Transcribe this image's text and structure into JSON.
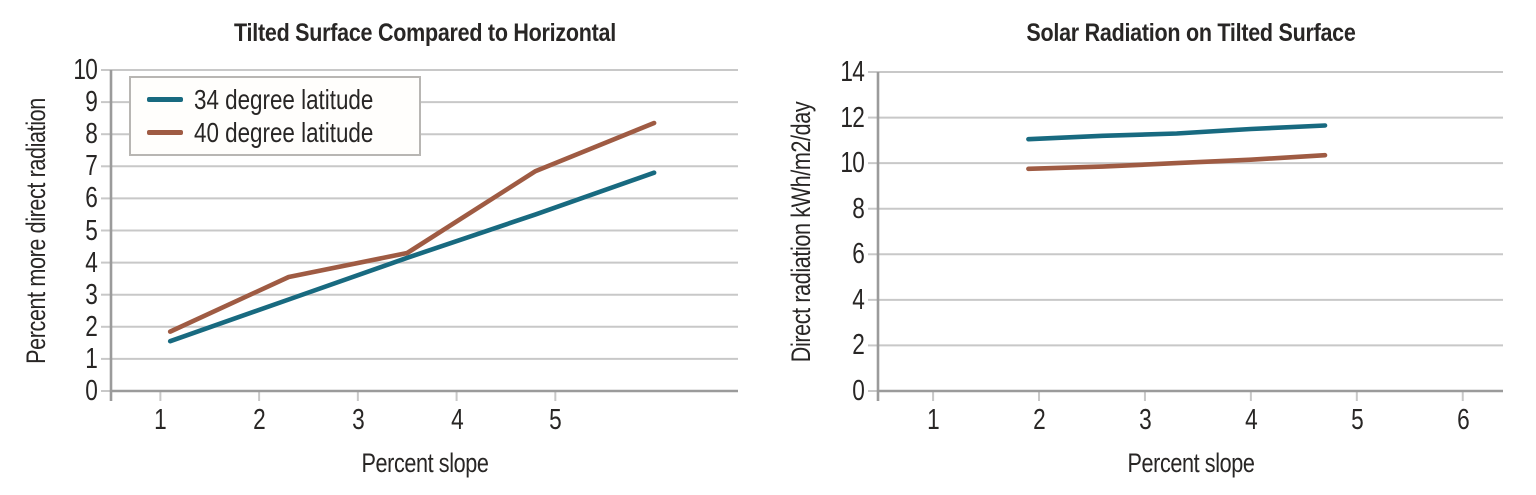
{
  "colors": {
    "series_34_latitude": "#186a80",
    "series_40_latitude": "#9f5b43",
    "gridline": "#c8c8c8",
    "axis": "#9b9b9b",
    "text": "#282625",
    "legend_border": "#b8b6b3",
    "background": "#ffffff"
  },
  "chart_data": [
    {
      "type": "line",
      "title": "Tilted Surface Compared to Horizontal",
      "xlabel": "Percent slope",
      "ylabel": "Percent more direct radiation",
      "xlim": [
        0.5,
        6.85
      ],
      "ylim": [
        0,
        10
      ],
      "x_ticks": [
        1,
        2,
        3,
        4,
        5
      ],
      "y_ticks": [
        0,
        1,
        2,
        3,
        4,
        5,
        6,
        7,
        8,
        9,
        10
      ],
      "grid": "horizontal",
      "legend_position": "top-left",
      "series": [
        {
          "name": "34 degree latitude",
          "color": "#186a80",
          "x": [
            1.1,
            2.3,
            3.5,
            4.8,
            6.0
          ],
          "y": [
            1.55,
            2.85,
            4.15,
            5.5,
            6.8
          ]
        },
        {
          "name": "40 degree latitude",
          "color": "#9f5b43",
          "x": [
            1.1,
            2.3,
            3.5,
            4.8,
            6.0
          ],
          "y": [
            1.85,
            3.55,
            4.3,
            6.85,
            8.35
          ]
        }
      ]
    },
    {
      "type": "line",
      "title": "Solar Radiation on Tilted Surface",
      "xlabel": "Percent slope",
      "ylabel": "Direct radiation kWh/m2/day",
      "xlim": [
        0.48,
        6.38
      ],
      "ylim": [
        0,
        14
      ],
      "x_ticks": [
        1,
        2,
        3,
        4,
        5,
        6
      ],
      "y_ticks": [
        0,
        2,
        4,
        6,
        8,
        10,
        12,
        14
      ],
      "grid": "horizontal",
      "legend_position": "none",
      "series": [
        {
          "name": "34 degree latitude",
          "color": "#186a80",
          "x": [
            1.9,
            2.6,
            3.3,
            4.0,
            4.7
          ],
          "y": [
            11.05,
            11.2,
            11.3,
            11.5,
            11.65
          ]
        },
        {
          "name": "40 degree latitude",
          "color": "#9f5b43",
          "x": [
            1.9,
            2.6,
            3.3,
            4.0,
            4.7
          ],
          "y": [
            9.75,
            9.85,
            10.0,
            10.15,
            10.35
          ]
        }
      ]
    }
  ]
}
